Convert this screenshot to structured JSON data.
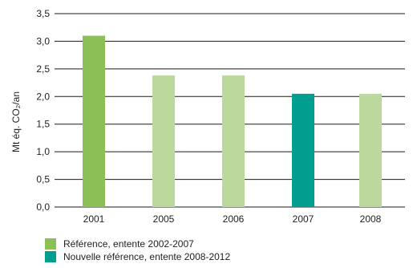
{
  "chart_data": {
    "type": "bar",
    "title": "",
    "xlabel": "",
    "ylabel": "Mt éq. CO₂/an",
    "categories": [
      "2001",
      "2005",
      "2006",
      "2007",
      "2008"
    ],
    "values": [
      3.1,
      2.38,
      2.38,
      2.05,
      2.05
    ],
    "bar_colors": [
      "#8cbf55",
      "#bcd89c",
      "#bcd89c",
      "#009e8e",
      "#bcd89c"
    ],
    "ylim": [
      0,
      3.5
    ],
    "yticks": [
      "0,0",
      "0,5",
      "1,0",
      "1,5",
      "2,0",
      "2,5",
      "3,0",
      "3,5"
    ],
    "grid": true
  },
  "legend": [
    {
      "label": "Référence, entente 2002-2007",
      "color": "#8cbf55"
    },
    {
      "label": "Nouvelle référence, entente 2008-2012",
      "color": "#009e8e"
    }
  ]
}
